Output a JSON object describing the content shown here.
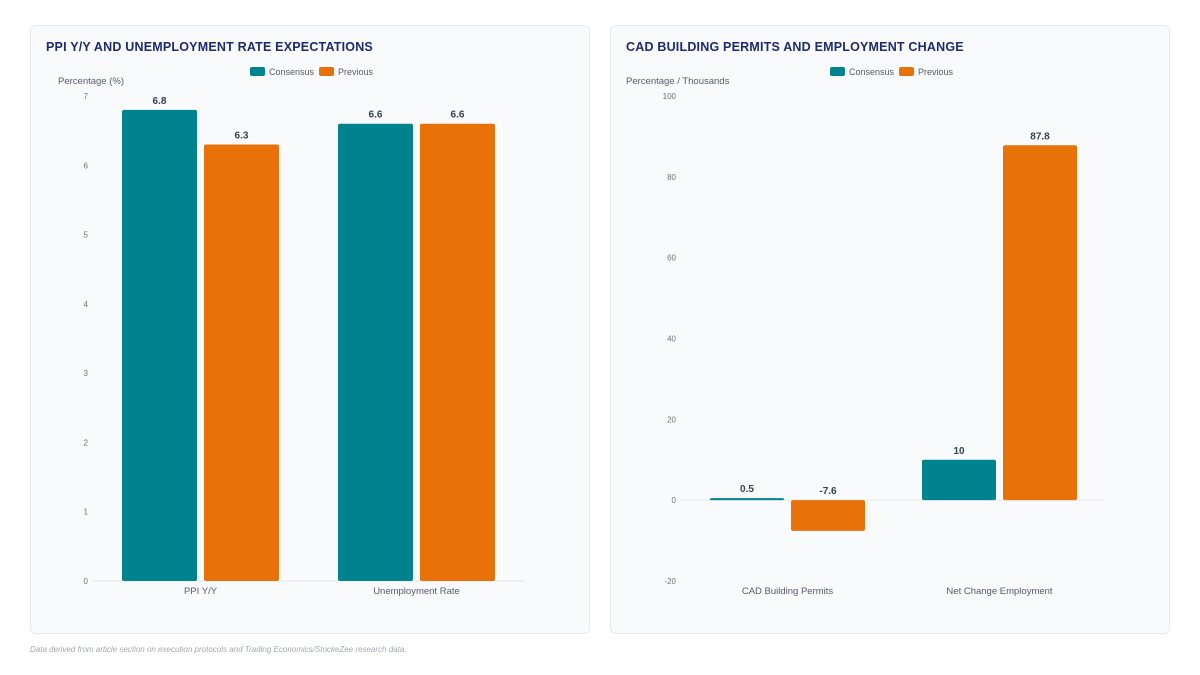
{
  "footnote": "Data derived from article section on execution protocols and Trading Economics/StockeZee research data.",
  "colors": {
    "consensus": "#00838f",
    "previous": "#e8710a"
  },
  "chart_data": [
    {
      "type": "bar",
      "title": "PPI Y/Y AND UNEMPLOYMENT RATE EXPECTATIONS",
      "ylabel": "Percentage (%)",
      "xlabel": "",
      "categories": [
        "PPI Y/Y",
        "Unemployment Rate"
      ],
      "series": [
        {
          "name": "Consensus",
          "values": [
            6.8,
            6.6
          ]
        },
        {
          "name": "Previous",
          "values": [
            6.3,
            6.6
          ]
        }
      ],
      "value_labels": [
        [
          "6.8",
          "6.6"
        ],
        [
          "6.3",
          "6.6"
        ]
      ],
      "ylim": [
        0,
        7
      ],
      "yticks": [
        0,
        1,
        2,
        3,
        4,
        5,
        6,
        7
      ],
      "grid": false,
      "legend": "top-center"
    },
    {
      "type": "bar",
      "title": "CAD BUILDING PERMITS AND EMPLOYMENT CHANGE",
      "ylabel": "Percentage / Thousands",
      "xlabel": "",
      "categories": [
        "CAD Building Permits",
        "Net Change Employment"
      ],
      "series": [
        {
          "name": "Consensus",
          "values": [
            0.5,
            10
          ]
        },
        {
          "name": "Previous",
          "values": [
            -7.6,
            87.8
          ]
        }
      ],
      "value_labels": [
        [
          "0.5",
          "10"
        ],
        [
          "-7.6",
          "87.8"
        ]
      ],
      "ylim": [
        -20,
        100
      ],
      "yticks": [
        -20,
        0,
        20,
        40,
        60,
        80,
        100
      ],
      "grid": false,
      "legend": "top-center"
    }
  ]
}
